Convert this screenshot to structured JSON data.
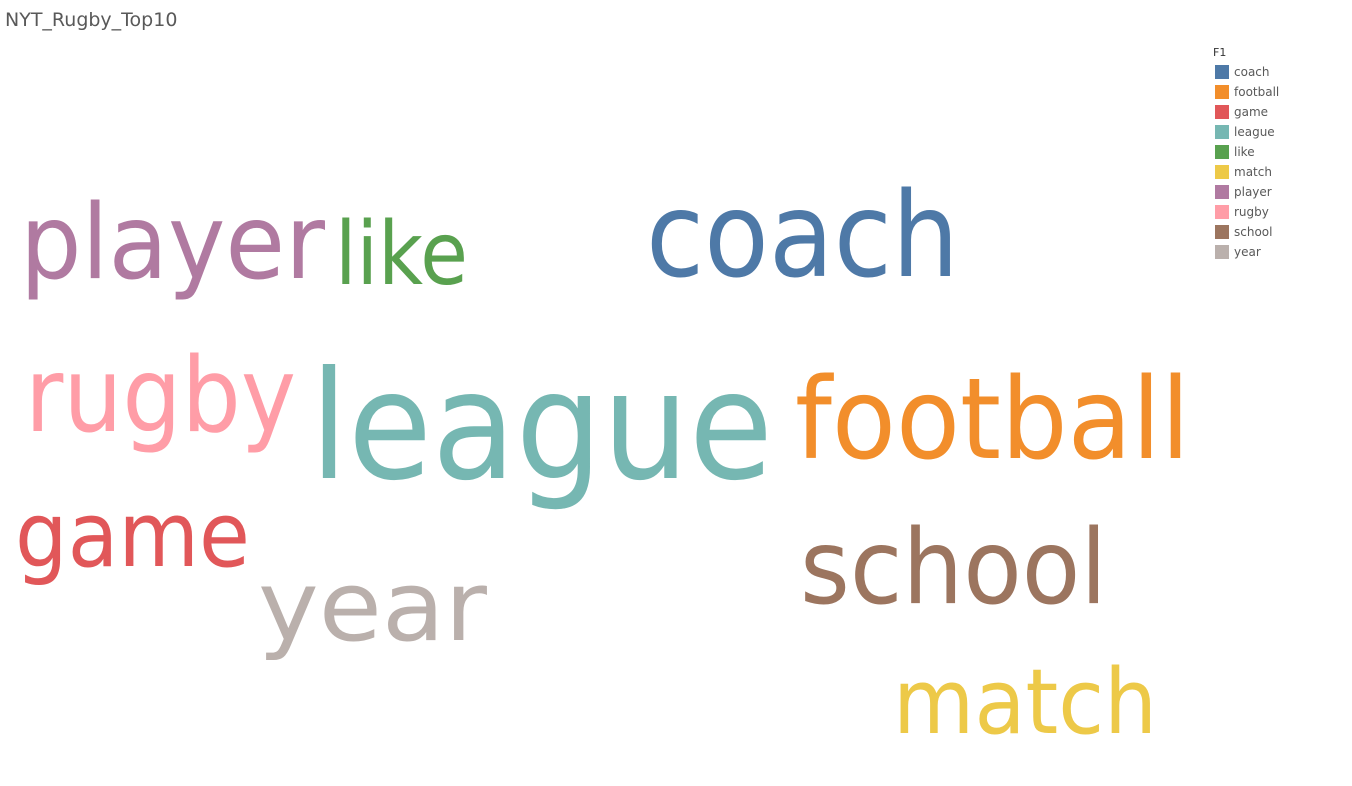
{
  "title": "NYT_Rugby_Top10",
  "legend": {
    "title": "F1",
    "items": [
      {
        "label": "coach",
        "color": "#4e79a7"
      },
      {
        "label": "football",
        "color": "#f28e2b"
      },
      {
        "label": "game",
        "color": "#e15759"
      },
      {
        "label": "league",
        "color": "#76b7b2"
      },
      {
        "label": "like",
        "color": "#59a14f"
      },
      {
        "label": "match",
        "color": "#edc948"
      },
      {
        "label": "player",
        "color": "#b07aa1"
      },
      {
        "label": "rugby",
        "color": "#ff9da7"
      },
      {
        "label": "school",
        "color": "#9c755f"
      },
      {
        "label": "year",
        "color": "#bab0ac"
      }
    ]
  },
  "chart_data": {
    "type": "wordcloud",
    "title": "NYT_Rugby_Top10",
    "legend_title": "F1",
    "legend_position": "top-right",
    "size_encoding": "relative word frequency (approximate, read from font size)",
    "words": [
      {
        "text": "league",
        "color": "#76b7b2",
        "weight": 1.0
      },
      {
        "text": "coach",
        "color": "#4e79a7",
        "weight": 0.79
      },
      {
        "text": "football",
        "color": "#f28e2b",
        "weight": 0.75
      },
      {
        "text": "player",
        "color": "#b07aa1",
        "weight": 0.69
      },
      {
        "text": "rugby",
        "color": "#ff9da7",
        "weight": 0.69
      },
      {
        "text": "school",
        "color": "#9c755f",
        "weight": 0.69
      },
      {
        "text": "year",
        "color": "#bab0ac",
        "weight": 0.65
      },
      {
        "text": "game",
        "color": "#e15759",
        "weight": 0.6
      },
      {
        "text": "match",
        "color": "#edc948",
        "weight": 0.6
      },
      {
        "text": "like",
        "color": "#59a14f",
        "weight": 0.58
      }
    ]
  }
}
